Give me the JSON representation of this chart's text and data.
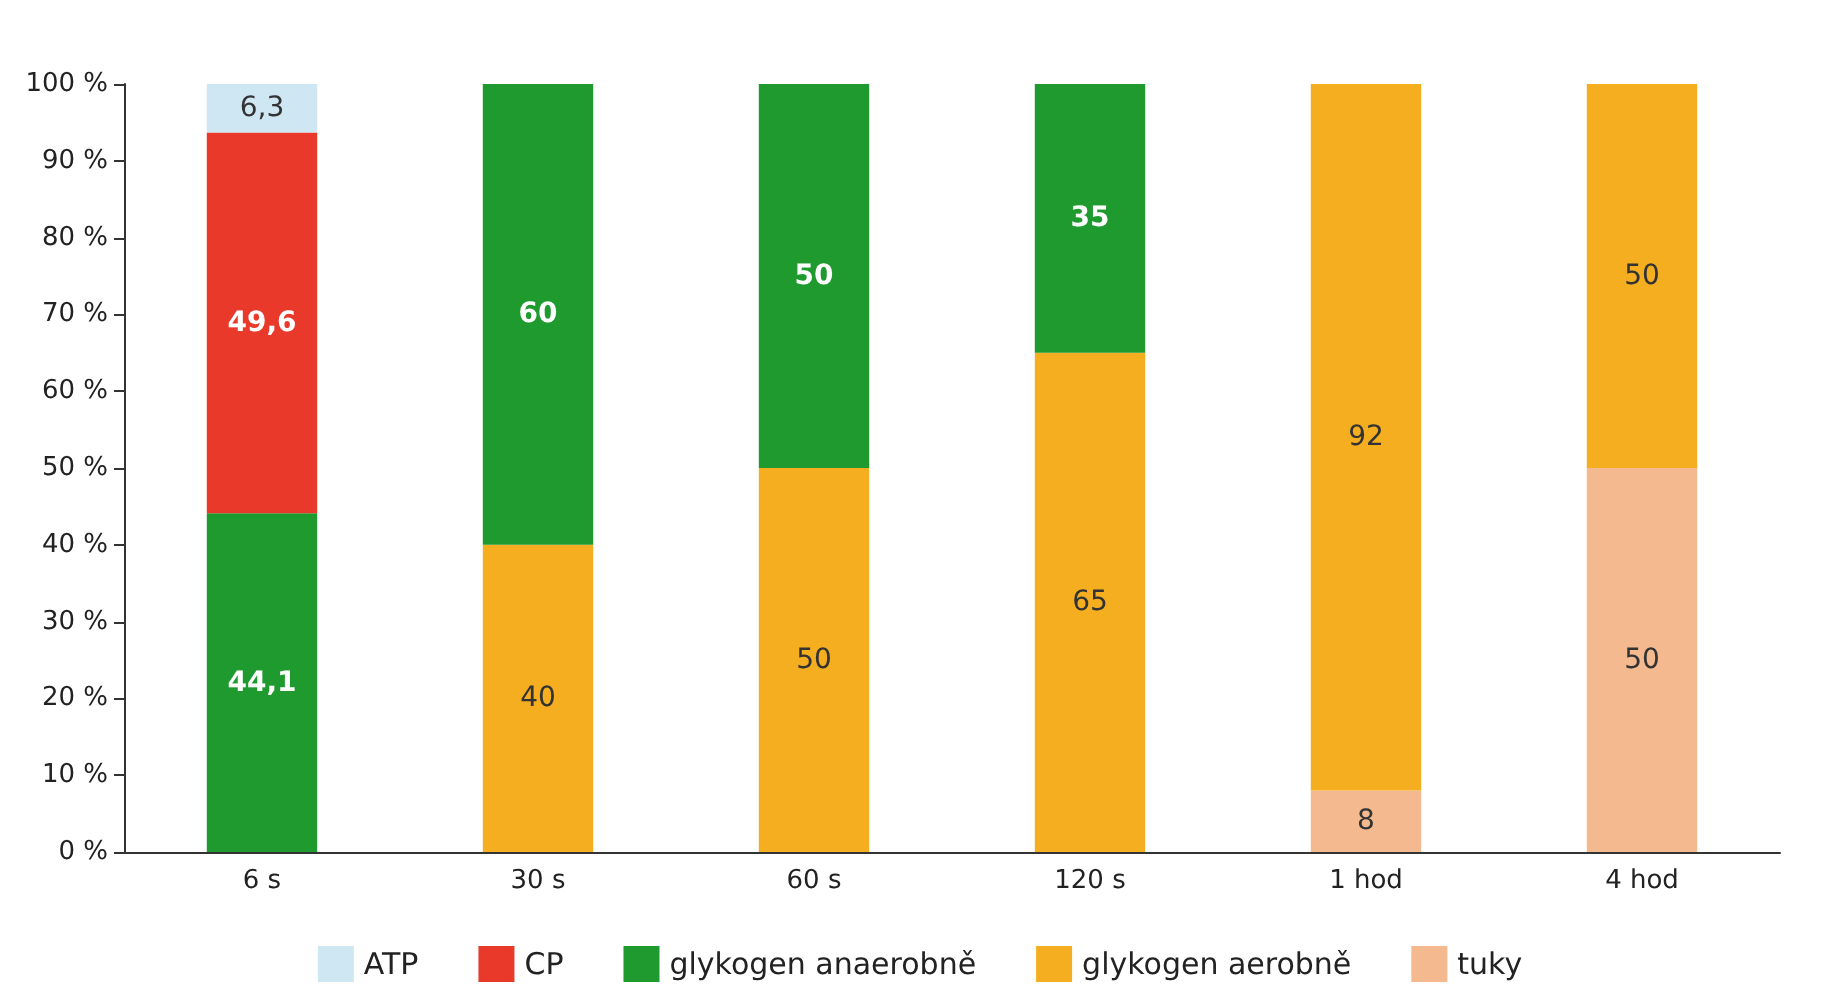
{
  "chart_data": {
    "type": "bar",
    "stacked": true,
    "grid": false,
    "legend": "bottom",
    "categories": [
      "6 s",
      "30 s",
      "60 s",
      "120 s",
      "1 hod",
      "4 hod"
    ],
    "ylim": [
      0,
      100
    ],
    "yticks": [
      {
        "value": 0,
        "label": "0 %"
      },
      {
        "value": 10,
        "label": "10 %"
      },
      {
        "value": 20,
        "label": "20 %"
      },
      {
        "value": 30,
        "label": "30 %"
      },
      {
        "value": 40,
        "label": "40 %"
      },
      {
        "value": 50,
        "label": "50 %"
      },
      {
        "value": 60,
        "label": "60 %"
      },
      {
        "value": 70,
        "label": "70 %"
      },
      {
        "value": 80,
        "label": "80 %"
      },
      {
        "value": 90,
        "label": "90 %"
      },
      {
        "value": 100,
        "label": "100 %"
      }
    ],
    "series": [
      {
        "name": "tuky",
        "color": "#f4b98e",
        "values": [
          null,
          null,
          null,
          null,
          8,
          50
        ],
        "value_labels": [
          null,
          null,
          null,
          null,
          "8",
          "50"
        ]
      },
      {
        "name": "glykogen aerobně",
        "color": "#f4ae1f",
        "values": [
          null,
          40,
          50,
          65,
          92,
          50
        ],
        "value_labels": [
          null,
          "40",
          "50",
          "65",
          "92",
          "50"
        ]
      },
      {
        "name": "glykogen anaerobně",
        "color": "#1e9a2e",
        "values": [
          44.1,
          60,
          50,
          35,
          null,
          null
        ],
        "value_labels": [
          "44,1",
          "60",
          "50",
          "35",
          null,
          null
        ]
      },
      {
        "name": "CP",
        "color": "#e8392b",
        "values": [
          49.6,
          null,
          null,
          null,
          null,
          null
        ],
        "value_labels": [
          "49,6",
          null,
          null,
          null,
          null,
          null
        ]
      },
      {
        "name": "ATP",
        "color": "#cfe6f3",
        "values": [
          6.3,
          null,
          null,
          null,
          null,
          null
        ],
        "value_labels": [
          "6,3",
          null,
          null,
          null,
          null,
          null
        ]
      }
    ]
  }
}
